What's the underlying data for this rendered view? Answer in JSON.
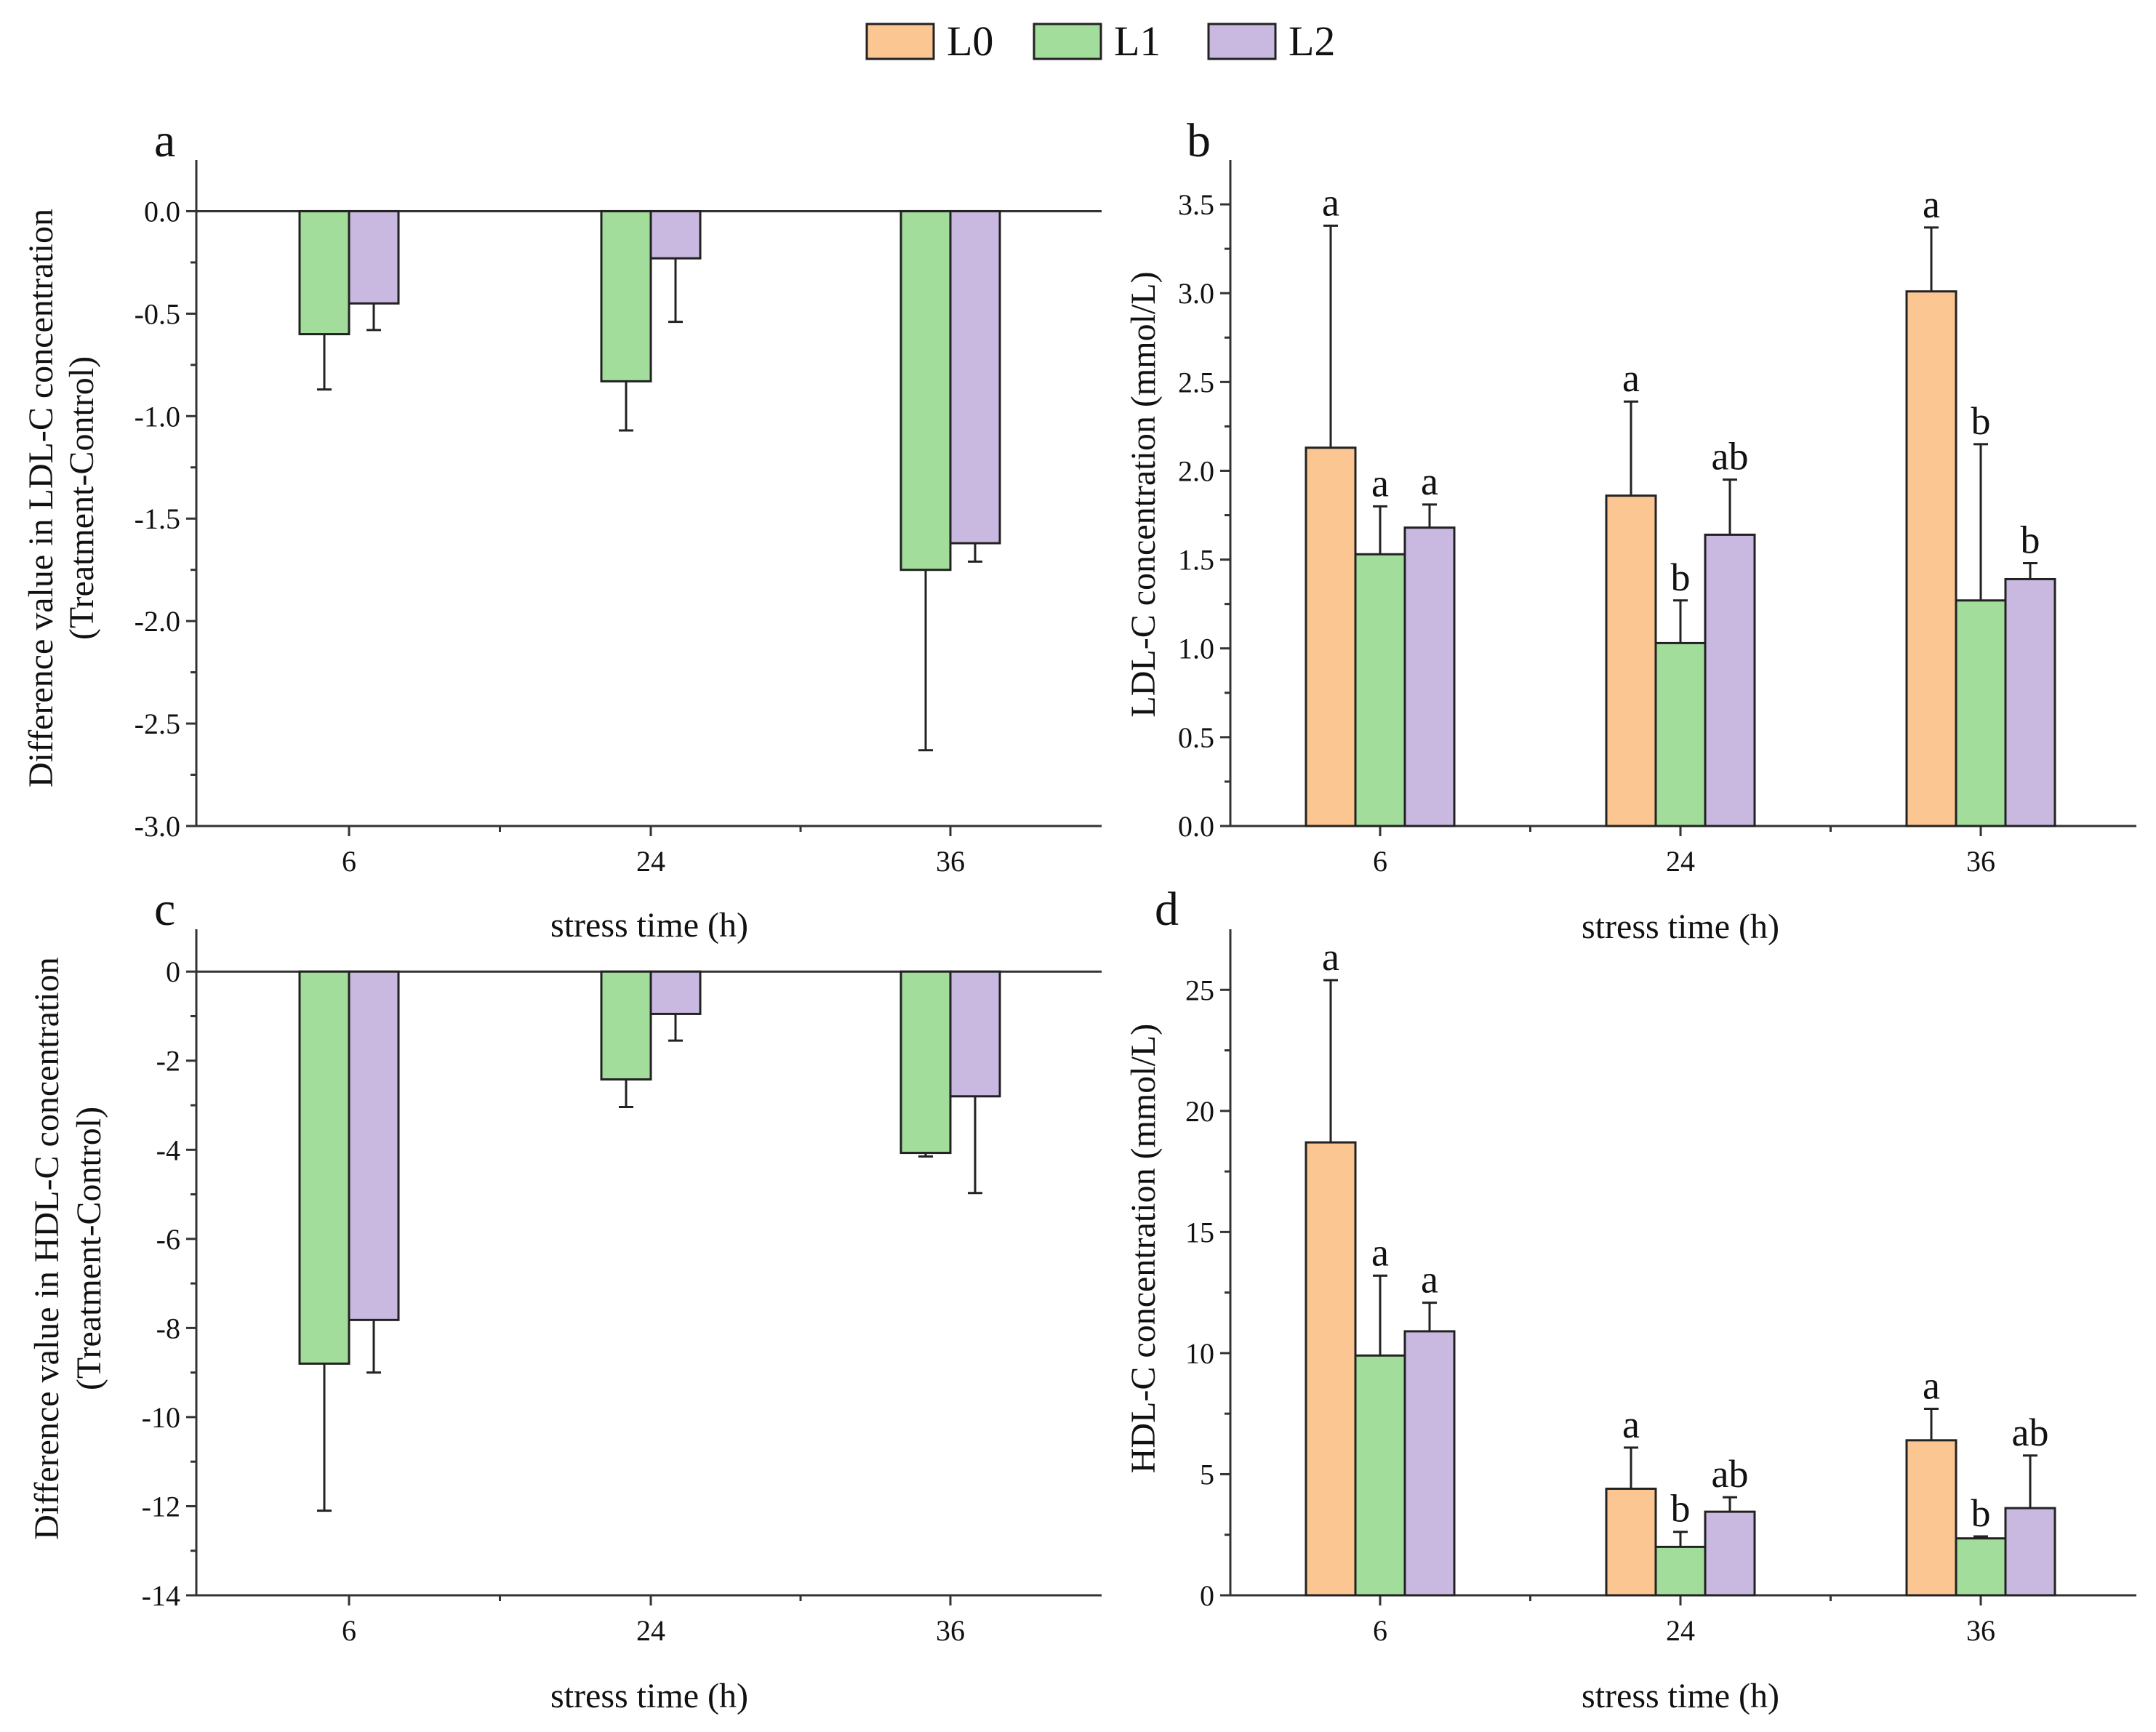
{
  "legend": {
    "items": [
      {
        "label": "L0",
        "color": "#fbc692"
      },
      {
        "label": "L1",
        "color": "#a3dd9c"
      },
      {
        "label": "L2",
        "color": "#c9b9e0"
      }
    ]
  },
  "chart_data": [
    {
      "panel": "a",
      "type": "bar",
      "categories": [
        "6",
        "24",
        "36"
      ],
      "xlabel": "stress time (h)",
      "ylabel_line1": "Difference value in LDL-C concentration",
      "ylabel_line2": "(Treatment-Control)",
      "ylim": [
        -3.0,
        0.25
      ],
      "yticks": [
        0.0,
        -0.5,
        -1.0,
        -1.5,
        -2.0,
        -2.5,
        -3.0
      ],
      "tick_labels": [
        "0.0",
        "-0.5",
        "-1.0",
        "-1.5",
        "-2.0",
        "-2.5",
        "-3.0"
      ],
      "baseline_line": true,
      "series": [
        {
          "name": "L1",
          "color": "#a3dd9c",
          "values": [
            -0.6,
            -0.83,
            -1.75
          ],
          "errors": [
            0.27,
            0.24,
            0.88
          ]
        },
        {
          "name": "L2",
          "color": "#c9b9e0",
          "values": [
            -0.45,
            -0.23,
            -1.62
          ],
          "errors": [
            0.13,
            0.31,
            0.09
          ]
        }
      ]
    },
    {
      "panel": "b",
      "type": "bar",
      "categories": [
        "6",
        "24",
        "36"
      ],
      "xlabel": "stress time (h)",
      "ylabel_line1": "LDL-C concentration (mmol/L)",
      "ylim": [
        0,
        3.75
      ],
      "yticks": [
        0.0,
        0.5,
        1.0,
        1.5,
        2.0,
        2.5,
        3.0,
        3.5
      ],
      "tick_labels": [
        "0.0",
        "0.5",
        "1.0",
        "1.5",
        "2.0",
        "2.5",
        "3.0",
        "3.5"
      ],
      "series": [
        {
          "name": "L0",
          "color": "#fbc692",
          "values": [
            2.13,
            1.86,
            3.01
          ],
          "errors": [
            1.25,
            0.53,
            0.36
          ],
          "letters": [
            "a",
            "a",
            "a"
          ]
        },
        {
          "name": "L1",
          "color": "#a3dd9c",
          "values": [
            1.53,
            1.03,
            1.27
          ],
          "errors": [
            0.27,
            0.24,
            0.88
          ],
          "letters": [
            "a",
            "b",
            "b"
          ]
        },
        {
          "name": "L2",
          "color": "#c9b9e0",
          "values": [
            1.68,
            1.64,
            1.39
          ],
          "errors": [
            0.13,
            0.31,
            0.09
          ],
          "letters": [
            "a",
            "ab",
            "b"
          ]
        }
      ]
    },
    {
      "panel": "c",
      "type": "bar",
      "categories": [
        "6",
        "24",
        "36"
      ],
      "xlabel": "stress time (h)",
      "ylabel_line1": "Difference value in HDL-C concentration",
      "ylabel_line2": "(Treatment-Control)",
      "ylim": [
        -14,
        0.95
      ],
      "yticks": [
        0,
        -2,
        -4,
        -6,
        -8,
        -10,
        -12,
        -14
      ],
      "tick_labels": [
        "0",
        "-2",
        "-4",
        "-6",
        "-8",
        "-10",
        "-12",
        "-14"
      ],
      "baseline_line": true,
      "series": [
        {
          "name": "L1",
          "color": "#a3dd9c",
          "values": [
            -8.8,
            -2.42,
            -4.07
          ],
          "errors": [
            3.3,
            0.62,
            0.08
          ]
        },
        {
          "name": "L2",
          "color": "#c9b9e0",
          "values": [
            -7.82,
            -0.95,
            -2.8
          ],
          "errors": [
            1.18,
            0.6,
            2.17
          ]
        }
      ]
    },
    {
      "panel": "d",
      "type": "bar",
      "categories": [
        "6",
        "24",
        "36"
      ],
      "xlabel": "stress time (h)",
      "ylabel_line1": "HDL-C concentration (mmol/L)",
      "ylim": [
        0,
        27.5
      ],
      "yticks": [
        0,
        5,
        10,
        15,
        20,
        25
      ],
      "tick_labels": [
        "0",
        "5",
        "10",
        "15",
        "20",
        "25"
      ],
      "series": [
        {
          "name": "L0",
          "color": "#fbc692",
          "values": [
            18.7,
            4.4,
            6.4
          ],
          "errors": [
            6.7,
            1.7,
            1.3
          ],
          "letters": [
            "a",
            "a",
            "a"
          ]
        },
        {
          "name": "L1",
          "color": "#a3dd9c",
          "values": [
            9.9,
            2.0,
            2.35
          ],
          "errors": [
            3.3,
            0.62,
            0.08
          ],
          "letters": [
            "a",
            "b",
            "b"
          ]
        },
        {
          "name": "L2",
          "color": "#c9b9e0",
          "values": [
            10.9,
            3.45,
            3.6
          ],
          "errors": [
            1.18,
            0.6,
            2.17
          ],
          "letters": [
            "a",
            "ab",
            "ab"
          ]
        }
      ]
    }
  ]
}
